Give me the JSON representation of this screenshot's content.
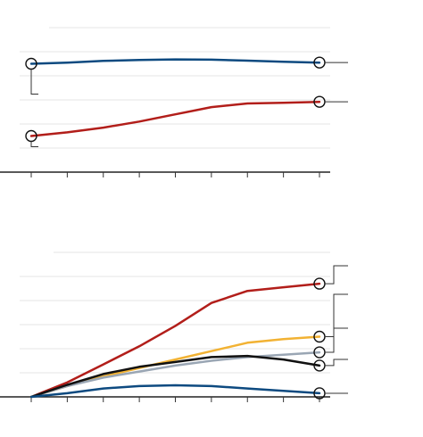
{
  "colors": {
    "blue": "#0d4a80",
    "red": "#b21e1a",
    "gold": "#f2b233",
    "gray": "#9aa6b4",
    "black": "#111111",
    "grid": "#e6e6e6"
  },
  "chart_data": [
    {
      "type": "line",
      "x": [
        0,
        1,
        2,
        3,
        4,
        5,
        6,
        7,
        8
      ],
      "ylim": [
        0,
        6
      ],
      "grid": true,
      "x_ticks": 9,
      "endpoint_markers": "both-ends",
      "series": [
        {
          "color": "blue",
          "values": [
            4.5,
            4.55,
            4.62,
            4.66,
            4.68,
            4.67,
            4.63,
            4.58,
            4.55
          ]
        },
        {
          "color": "red",
          "values": [
            1.5,
            1.65,
            1.85,
            2.1,
            2.4,
            2.7,
            2.85,
            2.88,
            2.92
          ]
        }
      ]
    },
    {
      "type": "line",
      "x": [
        0,
        1,
        2,
        3,
        4,
        5,
        6,
        7,
        8
      ],
      "ylim": [
        0,
        6
      ],
      "grid": true,
      "x_ticks": 9,
      "endpoint_markers": "end-only",
      "series": [
        {
          "color": "red",
          "values": [
            0,
            0.6,
            1.35,
            2.1,
            2.95,
            3.9,
            4.4,
            4.55,
            4.7
          ]
        },
        {
          "color": "gold",
          "values": [
            0,
            0.45,
            0.85,
            1.2,
            1.55,
            1.9,
            2.25,
            2.4,
            2.5
          ]
        },
        {
          "color": "gray",
          "values": [
            0,
            0.45,
            0.8,
            1.05,
            1.3,
            1.5,
            1.65,
            1.75,
            1.85
          ]
        },
        {
          "color": "black",
          "values": [
            0,
            0.5,
            0.95,
            1.25,
            1.45,
            1.65,
            1.7,
            1.55,
            1.3
          ]
        },
        {
          "color": "blue",
          "values": [
            0,
            0.15,
            0.35,
            0.45,
            0.48,
            0.45,
            0.35,
            0.25,
            0.15
          ]
        }
      ]
    }
  ]
}
